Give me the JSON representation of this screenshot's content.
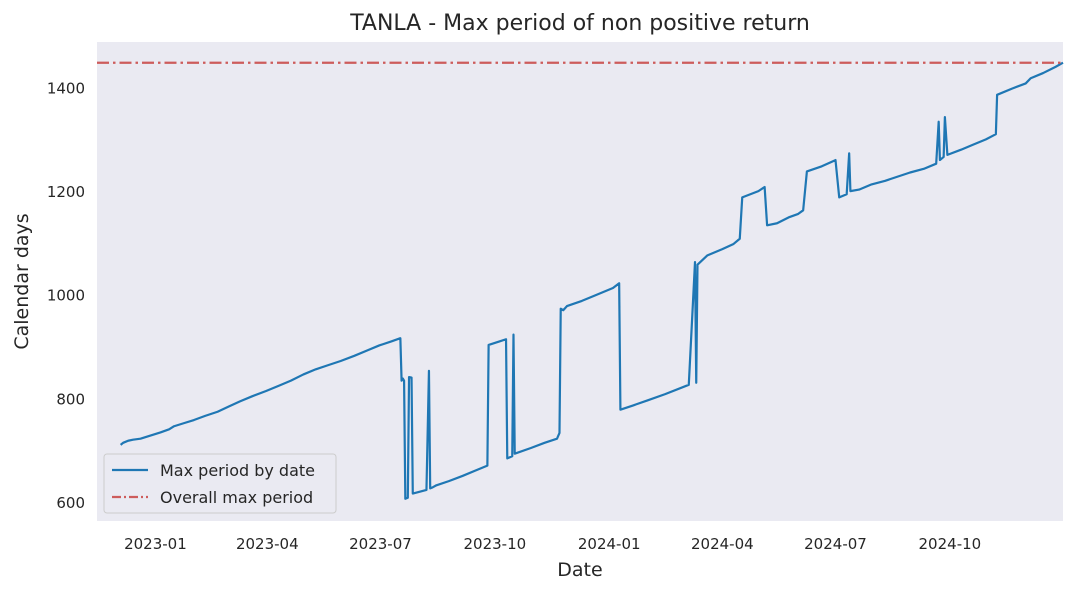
{
  "chart_data": {
    "type": "line",
    "title": "TANLA - Max period of non positive return",
    "xlabel": "Date",
    "ylabel": "Calendar days",
    "xlim": [
      "2022-11-15",
      "2024-12-31"
    ],
    "ylim": [
      565,
      1490
    ],
    "grid": false,
    "legend_position": "lower-left",
    "x_ticks": [
      {
        "date": "2023-01-01",
        "label": "2023-01"
      },
      {
        "date": "2023-04-01",
        "label": "2023-04"
      },
      {
        "date": "2023-07-01",
        "label": "2023-07"
      },
      {
        "date": "2023-10-01",
        "label": "2023-10"
      },
      {
        "date": "2024-01-01",
        "label": "2024-01"
      },
      {
        "date": "2024-04-01",
        "label": "2024-04"
      },
      {
        "date": "2024-07-01",
        "label": "2024-07"
      },
      {
        "date": "2024-10-01",
        "label": "2024-10"
      }
    ],
    "y_ticks": [
      600,
      800,
      1000,
      1200,
      1400
    ],
    "series": [
      {
        "name": "Max period by date",
        "color": "#1f77b4",
        "style": "solid",
        "points": [
          [
            "2022-12-04",
            712
          ],
          [
            "2022-12-06",
            716
          ],
          [
            "2022-12-10",
            720
          ],
          [
            "2022-12-14",
            722
          ],
          [
            "2022-12-20",
            724
          ],
          [
            "2022-12-28",
            730
          ],
          [
            "2023-01-05",
            736
          ],
          [
            "2023-01-12",
            742
          ],
          [
            "2023-01-16",
            748
          ],
          [
            "2023-01-24",
            754
          ],
          [
            "2023-02-01",
            760
          ],
          [
            "2023-02-10",
            768
          ],
          [
            "2023-02-20",
            776
          ],
          [
            "2023-03-01",
            786
          ],
          [
            "2023-03-10",
            796
          ],
          [
            "2023-03-20",
            806
          ],
          [
            "2023-03-31",
            816
          ],
          [
            "2023-04-10",
            826
          ],
          [
            "2023-04-20",
            836
          ],
          [
            "2023-04-30",
            848
          ],
          [
            "2023-05-10",
            858
          ],
          [
            "2023-05-20",
            866
          ],
          [
            "2023-05-30",
            874
          ],
          [
            "2023-06-10",
            884
          ],
          [
            "2023-06-20",
            894
          ],
          [
            "2023-06-30",
            904
          ],
          [
            "2023-07-10",
            912
          ],
          [
            "2023-07-17",
            918
          ],
          [
            "2023-07-18",
            836
          ],
          [
            "2023-07-19",
            840
          ],
          [
            "2023-07-20",
            836
          ],
          [
            "2023-07-21",
            608
          ],
          [
            "2023-07-23",
            610
          ],
          [
            "2023-07-24",
            843
          ],
          [
            "2023-07-26",
            842
          ],
          [
            "2023-07-27",
            618
          ],
          [
            "2023-08-07",
            625
          ],
          [
            "2023-08-09",
            855
          ],
          [
            "2023-08-10",
            628
          ],
          [
            "2023-08-12",
            630
          ],
          [
            "2023-08-15",
            634
          ],
          [
            "2023-08-25",
            642
          ],
          [
            "2023-09-05",
            652
          ],
          [
            "2023-09-15",
            662
          ],
          [
            "2023-09-25",
            672
          ],
          [
            "2023-09-26",
            905
          ],
          [
            "2023-10-05",
            912
          ],
          [
            "2023-10-10",
            916
          ],
          [
            "2023-10-11",
            686
          ],
          [
            "2023-10-15",
            690
          ],
          [
            "2023-10-16",
            925
          ],
          [
            "2023-10-17",
            695
          ],
          [
            "2023-10-30",
            706
          ],
          [
            "2023-11-10",
            716
          ],
          [
            "2023-11-20",
            724
          ],
          [
            "2023-11-22",
            735
          ],
          [
            "2023-11-23",
            975
          ],
          [
            "2023-11-25",
            972
          ],
          [
            "2023-11-28",
            980
          ],
          [
            "2023-12-10",
            990
          ],
          [
            "2023-12-20",
            1000
          ],
          [
            "2024-01-04",
            1015
          ],
          [
            "2024-01-09",
            1024
          ],
          [
            "2024-01-10",
            780
          ],
          [
            "2024-01-20",
            788
          ],
          [
            "2024-02-01",
            798
          ],
          [
            "2024-02-15",
            810
          ],
          [
            "2024-03-05",
            828
          ],
          [
            "2024-03-10",
            1065
          ],
          [
            "2024-03-11",
            832
          ],
          [
            "2024-03-12",
            1060
          ],
          [
            "2024-03-20",
            1078
          ],
          [
            "2024-04-01",
            1090
          ],
          [
            "2024-04-10",
            1100
          ],
          [
            "2024-04-15",
            1110
          ],
          [
            "2024-04-17",
            1190
          ],
          [
            "2024-04-30",
            1202
          ],
          [
            "2024-05-05",
            1210
          ],
          [
            "2024-05-07",
            1136
          ],
          [
            "2024-05-15",
            1140
          ],
          [
            "2024-05-25",
            1152
          ],
          [
            "2024-06-01",
            1158
          ],
          [
            "2024-06-05",
            1165
          ],
          [
            "2024-06-08",
            1240
          ],
          [
            "2024-06-20",
            1250
          ],
          [
            "2024-07-01",
            1262
          ],
          [
            "2024-07-04",
            1190
          ],
          [
            "2024-07-10",
            1196
          ],
          [
            "2024-07-12",
            1275
          ],
          [
            "2024-07-13",
            1202
          ],
          [
            "2024-07-20",
            1205
          ],
          [
            "2024-07-30",
            1215
          ],
          [
            "2024-08-10",
            1222
          ],
          [
            "2024-08-20",
            1230
          ],
          [
            "2024-08-30",
            1238
          ],
          [
            "2024-09-10",
            1245
          ],
          [
            "2024-09-20",
            1255
          ],
          [
            "2024-09-22",
            1336
          ],
          [
            "2024-09-23",
            1262
          ],
          [
            "2024-09-26",
            1268
          ],
          [
            "2024-09-27",
            1345
          ],
          [
            "2024-09-29",
            1272
          ],
          [
            "2024-10-10",
            1282
          ],
          [
            "2024-10-20",
            1292
          ],
          [
            "2024-10-30",
            1302
          ],
          [
            "2024-11-07",
            1312
          ],
          [
            "2024-11-08",
            1388
          ],
          [
            "2024-11-20",
            1400
          ],
          [
            "2024-12-01",
            1410
          ],
          [
            "2024-12-05",
            1420
          ],
          [
            "2024-12-15",
            1430
          ],
          [
            "2024-12-25",
            1442
          ],
          [
            "2024-12-31",
            1450
          ]
        ]
      },
      {
        "name": "Overall max period",
        "color": "#cd5c5c",
        "style": "dashdot",
        "y": 1450
      }
    ]
  }
}
